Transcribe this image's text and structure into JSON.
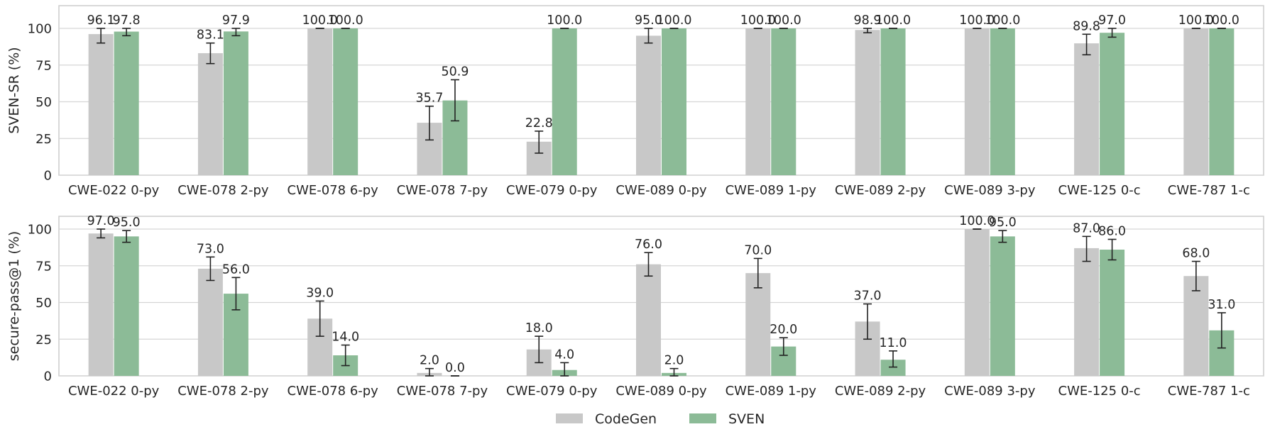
{
  "chart_data": [
    {
      "type": "bar",
      "ylabel": "SVEN-SR (%)",
      "ylim": [
        0,
        115
      ],
      "yticks": [
        0,
        25,
        50,
        75,
        100
      ],
      "grid": true,
      "categories": [
        "CWE-022 0-py",
        "CWE-078 2-py",
        "CWE-078 6-py",
        "CWE-078 7-py",
        "CWE-079 0-py",
        "CWE-089 0-py",
        "CWE-089 1-py",
        "CWE-089 2-py",
        "CWE-089 3-py",
        "CWE-125 0-c",
        "CWE-787 1-c"
      ],
      "series": [
        {
          "name": "CodeGen",
          "values": [
            96.1,
            83.1,
            100.0,
            35.7,
            22.8,
            95.0,
            100.0,
            98.9,
            100.0,
            89.8,
            100.0
          ],
          "error_low": [
            90,
            76,
            100,
            24,
            15,
            90,
            100,
            97,
            100,
            82,
            100
          ],
          "error_high": [
            100,
            90,
            100,
            47,
            30,
            100,
            100,
            100,
            100,
            96,
            100
          ],
          "labels": [
            "96.1",
            "83.1",
            "100.0",
            "35.7",
            "22.8",
            "95.0",
            "100.0",
            "98.9",
            "100.0",
            "89.8",
            "100.0"
          ]
        },
        {
          "name": "SVEN",
          "values": [
            97.8,
            97.9,
            100.0,
            50.9,
            100.0,
            100.0,
            100.0,
            100.0,
            100.0,
            97.0,
            100.0
          ],
          "error_low": [
            95,
            95,
            100,
            37,
            100,
            100,
            100,
            100,
            100,
            94,
            100
          ],
          "error_high": [
            100,
            100,
            100,
            65,
            100,
            100,
            100,
            100,
            100,
            100,
            100
          ],
          "labels": [
            "97.8",
            "97.9",
            "100.0",
            "50.9",
            "100.0",
            "100.0",
            "100.0",
            "100.0",
            "100.0",
            "97.0",
            "100.0"
          ]
        }
      ]
    },
    {
      "type": "bar",
      "ylabel": "secure-pass@1 (%)",
      "ylim": [
        0,
        100
      ],
      "yticks": [
        0,
        25,
        50,
        75,
        100
      ],
      "grid": true,
      "categories": [
        "CWE-022 0-py",
        "CWE-078 2-py",
        "CWE-078 6-py",
        "CWE-078 7-py",
        "CWE-079 0-py",
        "CWE-089 0-py",
        "CWE-089 1-py",
        "CWE-089 2-py",
        "CWE-089 3-py",
        "CWE-125 0-c",
        "CWE-787 1-c"
      ],
      "series": [
        {
          "name": "CodeGen",
          "values": [
            97.0,
            73.0,
            39.0,
            2.0,
            18.0,
            76.0,
            70.0,
            37.0,
            100.0,
            87.0,
            68.0
          ],
          "error_low": [
            94,
            65,
            27,
            0,
            9,
            68,
            60,
            25,
            100,
            78,
            58
          ],
          "error_high": [
            100,
            81,
            51,
            5,
            27,
            84,
            80,
            49,
            100,
            95,
            78
          ],
          "labels": [
            "97.0",
            "73.0",
            "39.0",
            "2.0",
            "18.0",
            "76.0",
            "70.0",
            "37.0",
            "100.0",
            "87.0",
            "68.0"
          ]
        },
        {
          "name": "SVEN",
          "values": [
            95.0,
            56.0,
            14.0,
            0.0,
            4.0,
            2.0,
            20.0,
            11.0,
            95.0,
            86.0,
            31.0
          ],
          "error_low": [
            91,
            45,
            7,
            0,
            0,
            0,
            14,
            6,
            91,
            79,
            19
          ],
          "error_high": [
            99,
            67,
            21,
            0,
            9,
            5,
            26,
            17,
            99,
            93,
            43
          ],
          "labels": [
            "95.0",
            "56.0",
            "14.0",
            "0.0",
            "4.0",
            "2.0",
            "20.0",
            "11.0",
            "95.0",
            "86.0",
            "31.0"
          ]
        }
      ]
    }
  ],
  "legend": {
    "placement": "bottom-center",
    "items": [
      {
        "label": "CodeGen",
        "color": "#c8c8c8"
      },
      {
        "label": "SVEN",
        "color": "#8cbb97"
      }
    ]
  },
  "colors": {
    "CodeGen": "#c8c8c8",
    "SVEN": "#8cbb97",
    "grid": "#d6d6d6",
    "spine": "#cccccc",
    "text": "#262626",
    "errorbar": "#222222"
  }
}
